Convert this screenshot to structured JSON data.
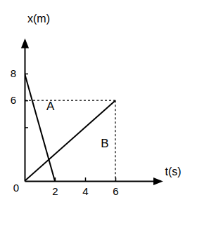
{
  "chart_data": {
    "type": "line",
    "x_label": "t(s)",
    "y_label": "x(m)",
    "series": [
      {
        "name": "A",
        "color": "#000000",
        "x": [
          0,
          2
        ],
        "values": [
          8,
          0
        ]
      },
      {
        "name": "B",
        "color": "#000000",
        "x": [
          0,
          6
        ],
        "values": [
          0,
          6
        ]
      }
    ],
    "annotations": [
      {
        "text": "A",
        "x": 1.7,
        "y": 5.6
      },
      {
        "text": "B",
        "x": 5.3,
        "y": 2.8
      }
    ],
    "xlim": [
      0,
      9
    ],
    "ylim": [
      0,
      10.5
    ],
    "xticks": [
      2,
      4,
      6
    ],
    "yticks": [
      0,
      {
        "value": 4,
        "label": null
      },
      6,
      8
    ],
    "grid": false
  }
}
